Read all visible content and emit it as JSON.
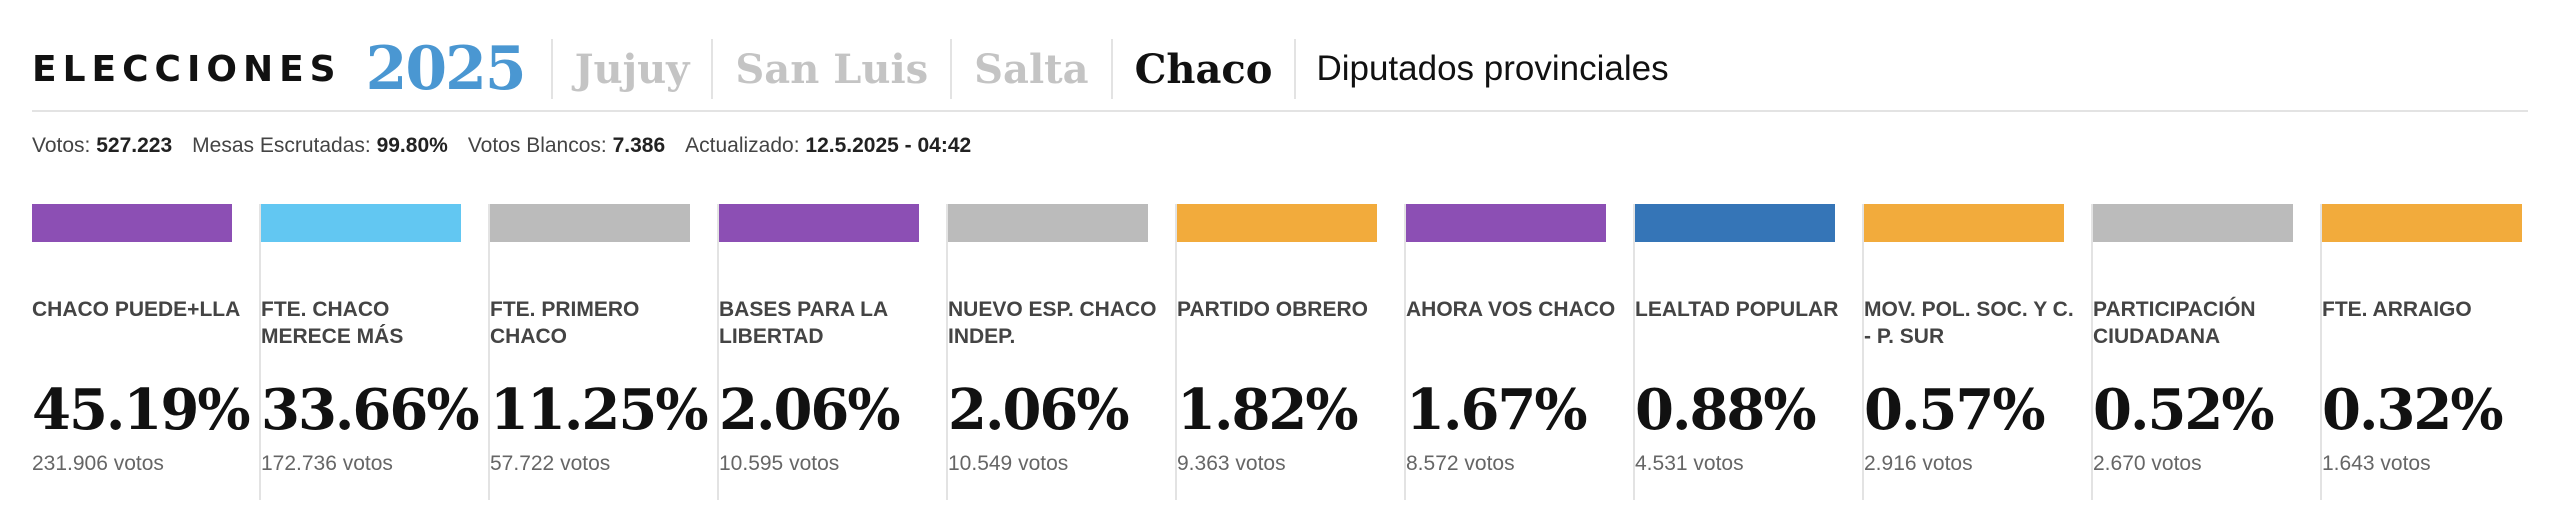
{
  "header": {
    "brand": "ELECCIONES",
    "year": "2025",
    "nav": [
      "Jujuy",
      "San Luis",
      "Salta",
      "Chaco"
    ],
    "active": "Chaco",
    "subtitle": "Diputados provinciales"
  },
  "stats": {
    "votos_label": "Votos:",
    "votos_value": "527.223",
    "mesas_label": "Mesas Escrutadas:",
    "mesas_value": "99.80%",
    "blancos_label": "Votos Blancos:",
    "blancos_value": "7.386",
    "actualizado_label": "Actualizado:",
    "actualizado_value": "12.5.2025 - 04:42"
  },
  "colors": {
    "purple": "#8c4fb4",
    "lightblue": "#62c7f2",
    "gray": "#bbbbbb",
    "orange": "#f2ab3c",
    "blue": "#3575b7"
  },
  "parties": [
    {
      "name": "CHACO PUEDE+LLA",
      "pct": "45.19%",
      "votes": "231.906 votos",
      "color": "#8c4fb4"
    },
    {
      "name": "FTE. CHACO MERECE MÁS",
      "pct": "33.66%",
      "votes": "172.736 votos",
      "color": "#62c7f2"
    },
    {
      "name": "FTE. PRIMERO CHACO",
      "pct": "11.25%",
      "votes": "57.722 votos",
      "color": "#bbbbbb"
    },
    {
      "name": "BASES PARA LA LIBERTAD",
      "pct": "2.06%",
      "votes": "10.595 votos",
      "color": "#8c4fb4"
    },
    {
      "name": "NUEVO ESP. CHACO INDEP.",
      "pct": "2.06%",
      "votes": "10.549 votos",
      "color": "#bbbbbb"
    },
    {
      "name": "PARTIDO OBRERO",
      "pct": "1.82%",
      "votes": "9.363 votos",
      "color": "#f2ab3c"
    },
    {
      "name": "AHORA VOS CHACO",
      "pct": "1.67%",
      "votes": "8.572 votos",
      "color": "#8c4fb4"
    },
    {
      "name": "LEALTAD POPULAR",
      "pct": "0.88%",
      "votes": "4.531 votos",
      "color": "#3575b7"
    },
    {
      "name": "MOV. POL. SOC. Y C. - P. SUR",
      "pct": "0.57%",
      "votes": "2.916 votos",
      "color": "#f2ab3c"
    },
    {
      "name": "PARTICIPACIÓN CIUDADANA",
      "pct": "0.52%",
      "votes": "2.670 votos",
      "color": "#bbbbbb"
    },
    {
      "name": "FTE. ARRAIGO",
      "pct": "0.32%",
      "votes": "1.643 votos",
      "color": "#f2ab3c"
    }
  ]
}
